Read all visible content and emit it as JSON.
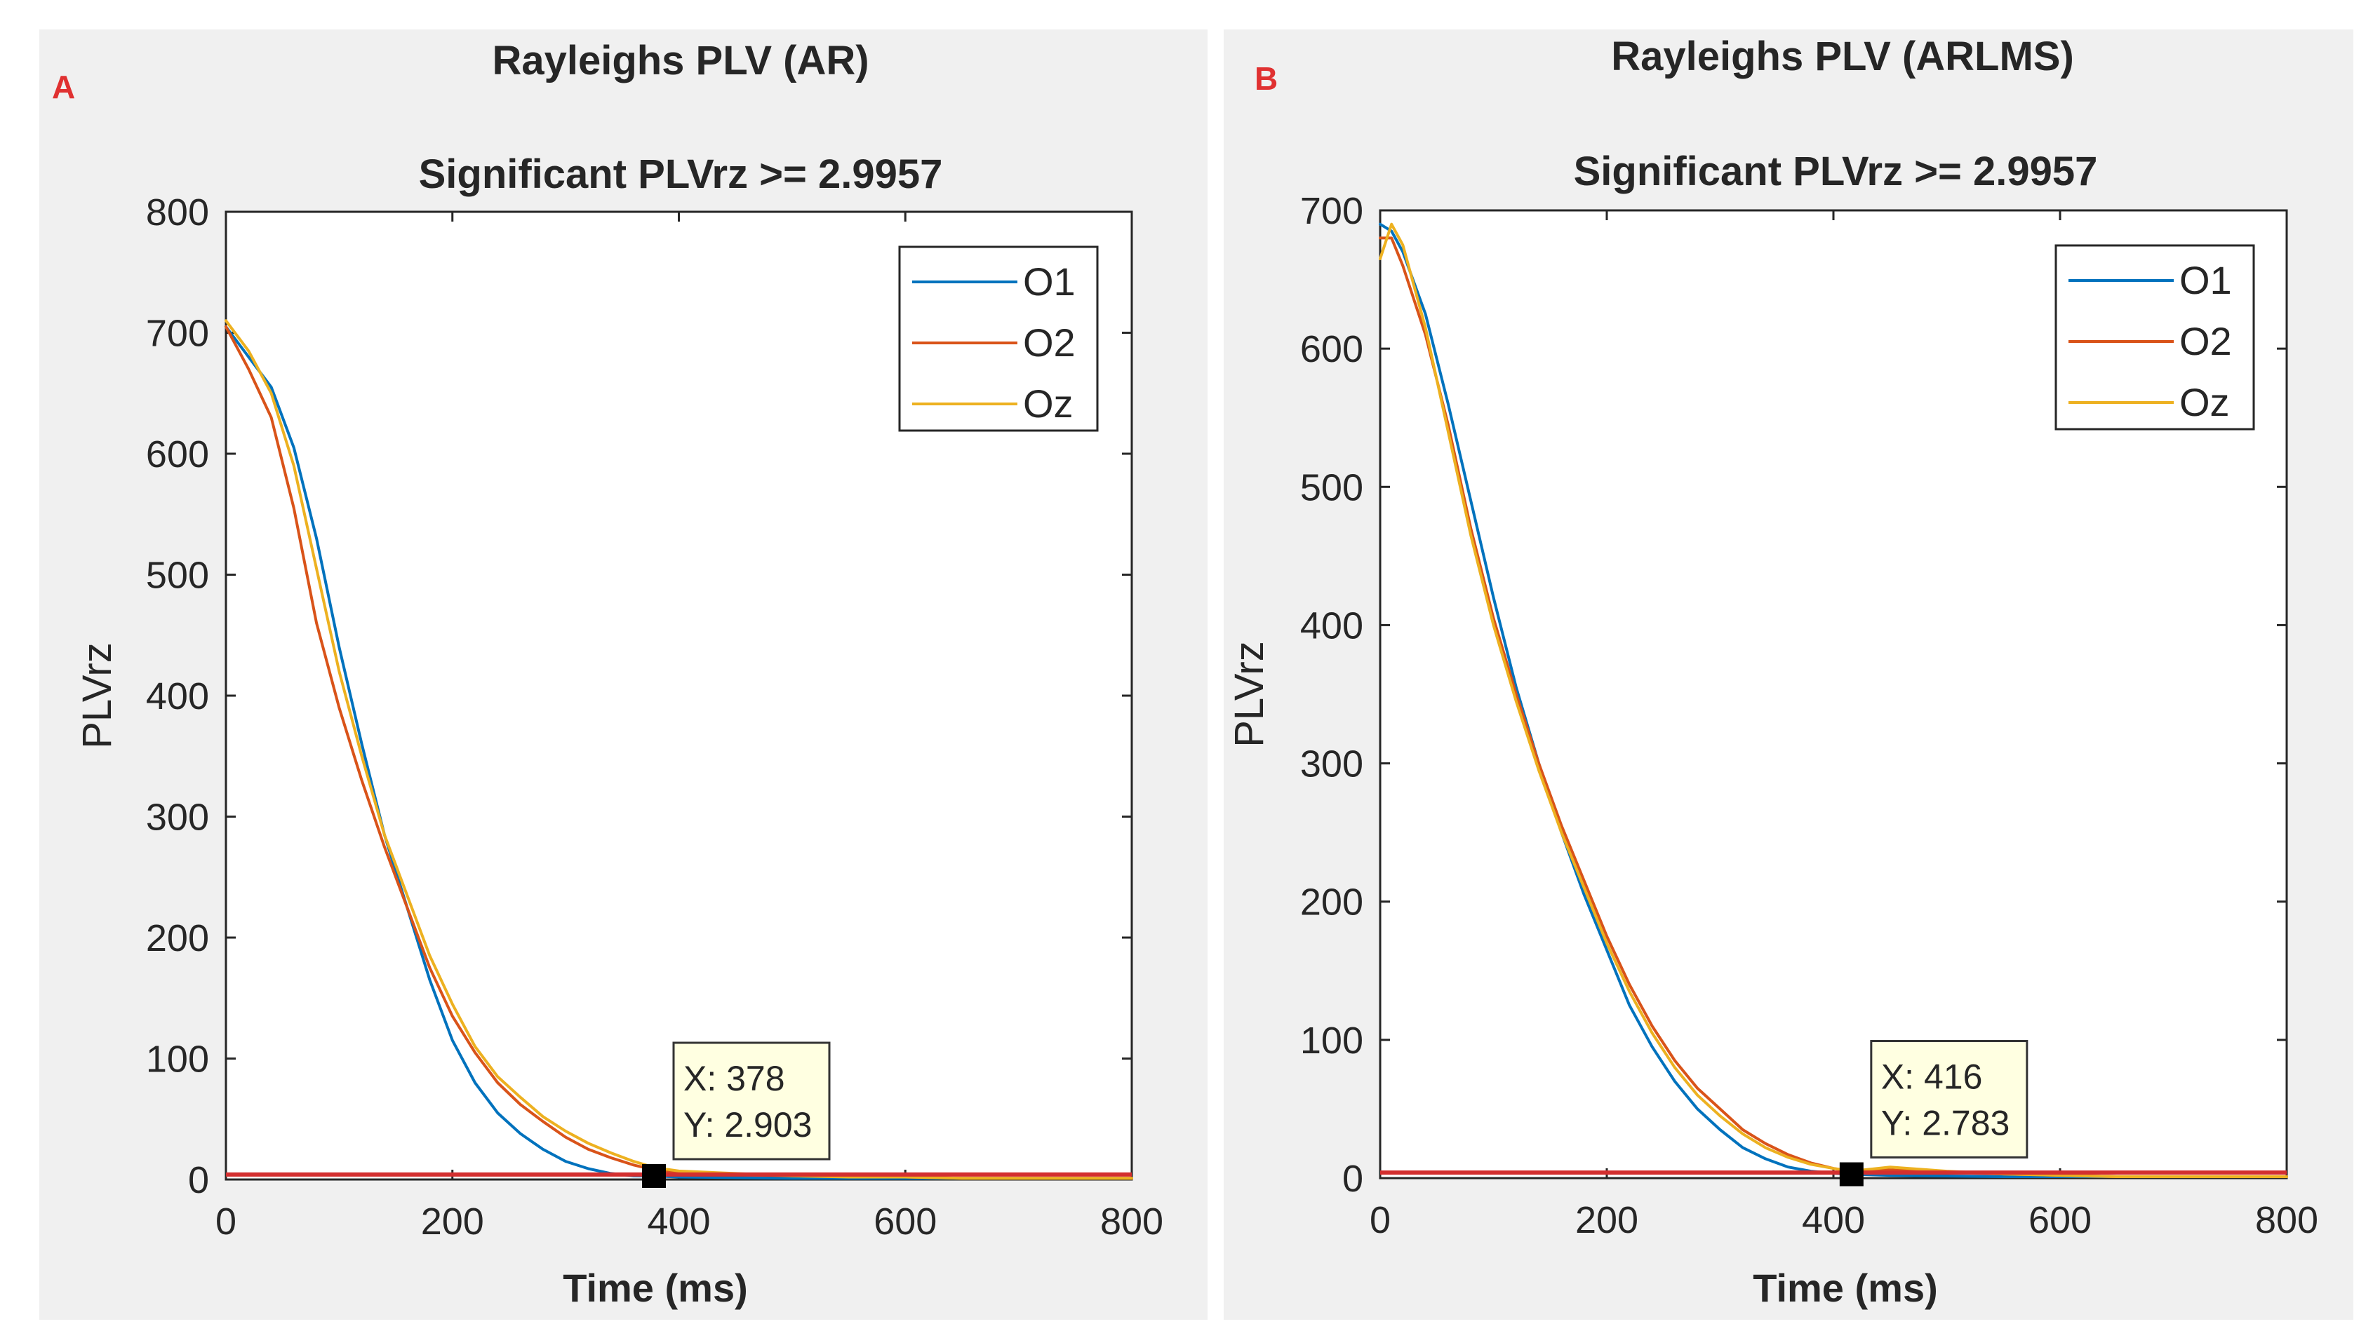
{
  "chart_data": [
    {
      "type": "line",
      "panel_label": "A",
      "suptitle": "Rayleighs PLV (AR)",
      "title": "Significant PLVrz >= 2.9957",
      "xlabel": "Time  (ms)",
      "ylabel": "PLVrz",
      "xlim": [
        0,
        800
      ],
      "ylim": [
        0,
        800
      ],
      "xticks": [
        0,
        200,
        400,
        600,
        800
      ],
      "yticks": [
        0,
        100,
        200,
        300,
        400,
        500,
        600,
        700,
        800
      ],
      "legend": [
        "O1",
        "O2",
        "Oz"
      ],
      "legend_position": "top-right",
      "x": [
        0,
        20,
        40,
        60,
        80,
        100,
        120,
        140,
        160,
        180,
        200,
        220,
        240,
        260,
        280,
        300,
        320,
        340,
        360,
        378,
        400,
        450,
        500,
        550,
        600,
        650,
        700,
        800
      ],
      "series": [
        {
          "name": "O1",
          "color": "#0072bd",
          "values": [
            705,
            680,
            655,
            605,
            530,
            440,
            360,
            285,
            225,
            165,
            115,
            80,
            55,
            38,
            25,
            15,
            9,
            5,
            3,
            2.9,
            2,
            1.5,
            1,
            1,
            1,
            1,
            1,
            1
          ]
        },
        {
          "name": "O2",
          "color": "#d95319",
          "values": [
            705,
            670,
            630,
            555,
            460,
            390,
            330,
            275,
            225,
            175,
            135,
            105,
            80,
            62,
            48,
            35,
            25,
            18,
            12,
            8,
            6,
            4,
            3,
            4,
            2,
            1,
            1,
            1
          ]
        },
        {
          "name": "Oz",
          "color": "#edb120",
          "values": [
            710,
            685,
            650,
            590,
            505,
            420,
            350,
            285,
            235,
            185,
            145,
            110,
            85,
            68,
            52,
            40,
            30,
            22,
            15,
            10,
            7,
            5,
            3,
            2,
            2,
            1,
            1,
            1
          ]
        }
      ],
      "datatip": {
        "x_label": "X: 378",
        "y_label": "Y: 2.903",
        "x": 378,
        "y": 2.903
      }
    },
    {
      "type": "line",
      "panel_label": "B",
      "suptitle": "Rayleighs PLV (ARLMS)",
      "title": "Significant PLVrz >= 2.9957",
      "xlabel": "Time  (ms)",
      "ylabel": "PLVrz",
      "xlim": [
        0,
        800
      ],
      "ylim": [
        0,
        700
      ],
      "xticks": [
        0,
        200,
        400,
        600,
        800
      ],
      "yticks": [
        0,
        100,
        200,
        300,
        400,
        500,
        600,
        700
      ],
      "legend": [
        "O1",
        "O2",
        "Oz"
      ],
      "legend_position": "top-right",
      "x": [
        0,
        10,
        20,
        40,
        60,
        80,
        100,
        120,
        140,
        160,
        180,
        200,
        220,
        240,
        260,
        280,
        300,
        320,
        340,
        360,
        380,
        400,
        416,
        450,
        500,
        550,
        600,
        650,
        700,
        800
      ],
      "series": [
        {
          "name": "O1",
          "color": "#0072bd",
          "values": [
            690,
            685,
            670,
            625,
            560,
            490,
            420,
            355,
            300,
            250,
            205,
            165,
            125,
            95,
            70,
            50,
            35,
            22,
            14,
            8,
            5,
            3.5,
            2.8,
            2,
            1.5,
            1,
            1,
            1,
            1,
            1
          ]
        },
        {
          "name": "O2",
          "color": "#d95319",
          "values": [
            680,
            680,
            660,
            610,
            545,
            470,
            405,
            350,
            300,
            255,
            215,
            175,
            140,
            110,
            85,
            65,
            50,
            35,
            25,
            17,
            11,
            7,
            5,
            6,
            4,
            3,
            2,
            1,
            1,
            1
          ]
        },
        {
          "name": "Oz",
          "color": "#edb120",
          "values": [
            665,
            690,
            675,
            615,
            540,
            465,
            400,
            345,
            295,
            250,
            210,
            170,
            135,
            105,
            80,
            60,
            45,
            32,
            22,
            15,
            10,
            7,
            5,
            8,
            5,
            3,
            2,
            1,
            1,
            1
          ]
        }
      ],
      "datatip": {
        "x_label": "X: 416",
        "y_label": "Y: 2.783",
        "x": 416,
        "y": 2.783
      }
    }
  ]
}
